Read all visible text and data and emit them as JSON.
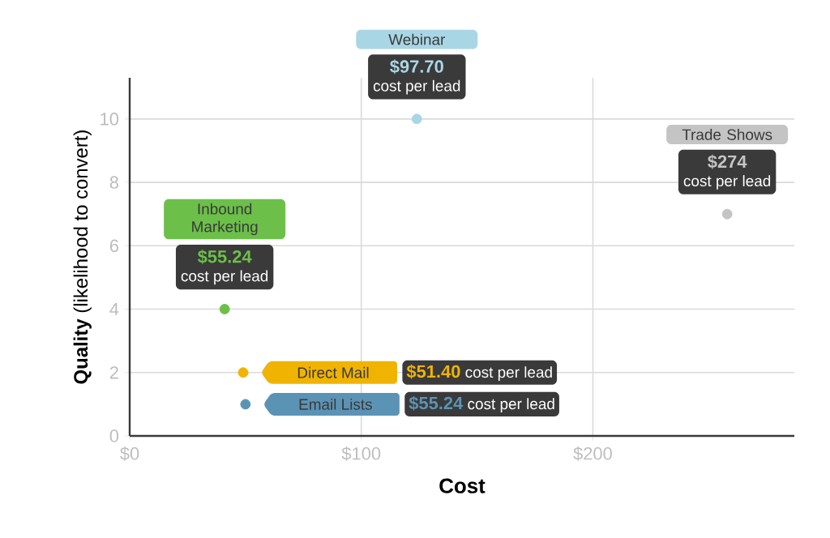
{
  "chart_data": {
    "type": "scatter",
    "xlabel": "Cost",
    "ylabel": "**Quality** (likelihood to convert)",
    "xlim": [
      0,
      287
    ],
    "ylim": [
      0,
      11.3
    ],
    "xticks": [
      {
        "value": 0,
        "label": "$0"
      },
      {
        "value": 100,
        "label": "$100"
      },
      {
        "value": 200,
        "label": "$200"
      }
    ],
    "yticks": [
      0,
      2,
      4,
      6,
      8,
      10
    ],
    "grid": true,
    "marker": "circle",
    "series": [
      {
        "name": "Webinar",
        "color": "#a9d6e5",
        "x": [
          124
        ],
        "values": [
          10
        ]
      },
      {
        "name": "Trade Shows",
        "color": "#c4c4c4",
        "x": [
          258
        ],
        "values": [
          7
        ]
      },
      {
        "name": "Inbound Marketing",
        "color": "#6cc04a",
        "x": [
          41
        ],
        "values": [
          4
        ]
      },
      {
        "name": "Direct Mail",
        "color": "#f0b400",
        "x": [
          49
        ],
        "values": [
          2
        ]
      },
      {
        "name": "Email Lists",
        "color": "#5b93b5",
        "x": [
          50
        ],
        "values": [
          1
        ]
      }
    ],
    "annotations": [
      "$97.70",
      "cost per lead",
      "$274",
      "cost per lead",
      "$55.24",
      "cost per lead",
      "$51.40",
      "cost per lead",
      "$55.24",
      "cost per lead"
    ]
  }
}
